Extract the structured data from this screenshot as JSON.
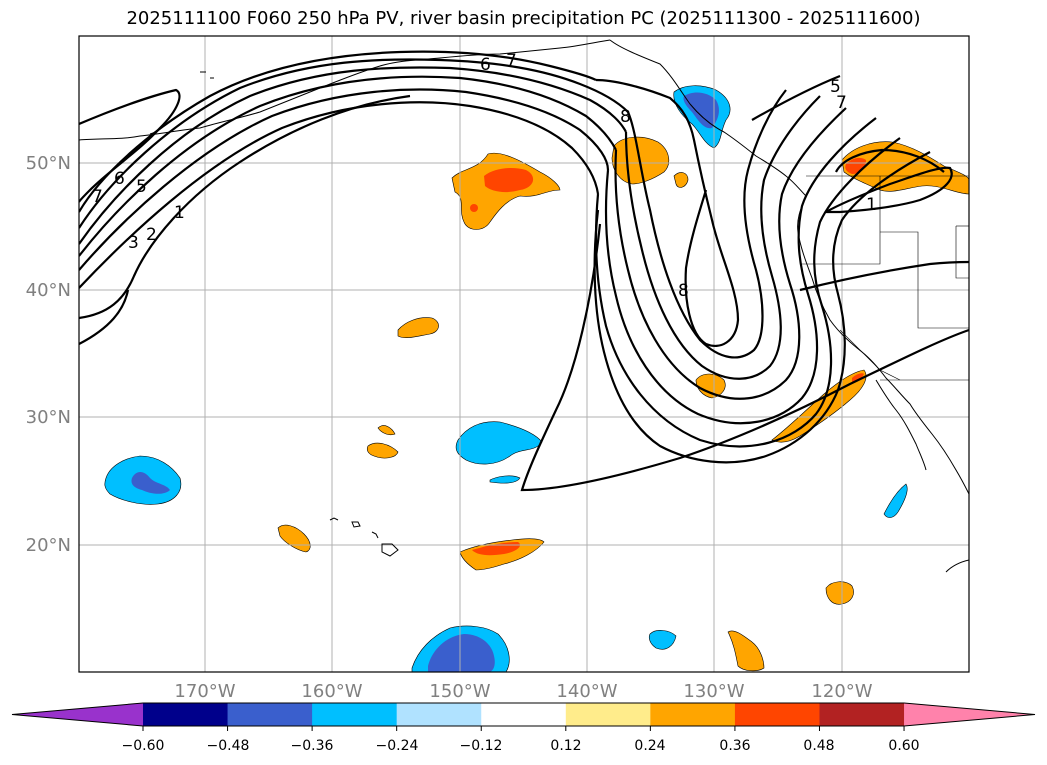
{
  "title": "2025111100 F060 250 hPa PV, river basin precipitation PC (2025111300 - 2025111600)",
  "map": {
    "lat_labels": [
      "50°N",
      "40°N",
      "30°N",
      "20°N"
    ],
    "lon_labels": [
      "170°W",
      "160°W",
      "150°W",
      "140°W",
      "130°W",
      "120°W"
    ],
    "contour_labels": [
      "7",
      "6",
      "5",
      "3",
      "2",
      "1",
      "6",
      "7",
      "8",
      "8",
      "5",
      "7",
      "1"
    ]
  },
  "colorbar": {
    "ticks": [
      "−0.60",
      "−0.48",
      "−0.36",
      "−0.24",
      "−0.12",
      "0.12",
      "0.24",
      "0.36",
      "0.48",
      "0.60"
    ],
    "colors": [
      "#9932cc",
      "#00008b",
      "#3a5fcd",
      "#00bfff",
      "#b0e2ff",
      "#ffffff",
      "#ffec8b",
      "#ffa500",
      "#ff4500",
      "#b22222",
      "#ff82ab"
    ],
    "extend": "both"
  },
  "colors": {
    "positive_light": "#ffa500",
    "positive_strong": "#ff4500",
    "negative_light": "#00bfff",
    "negative_strong": "#3a5fcd",
    "pv_contour": "#000000",
    "grid": "#b0b0b0"
  }
}
